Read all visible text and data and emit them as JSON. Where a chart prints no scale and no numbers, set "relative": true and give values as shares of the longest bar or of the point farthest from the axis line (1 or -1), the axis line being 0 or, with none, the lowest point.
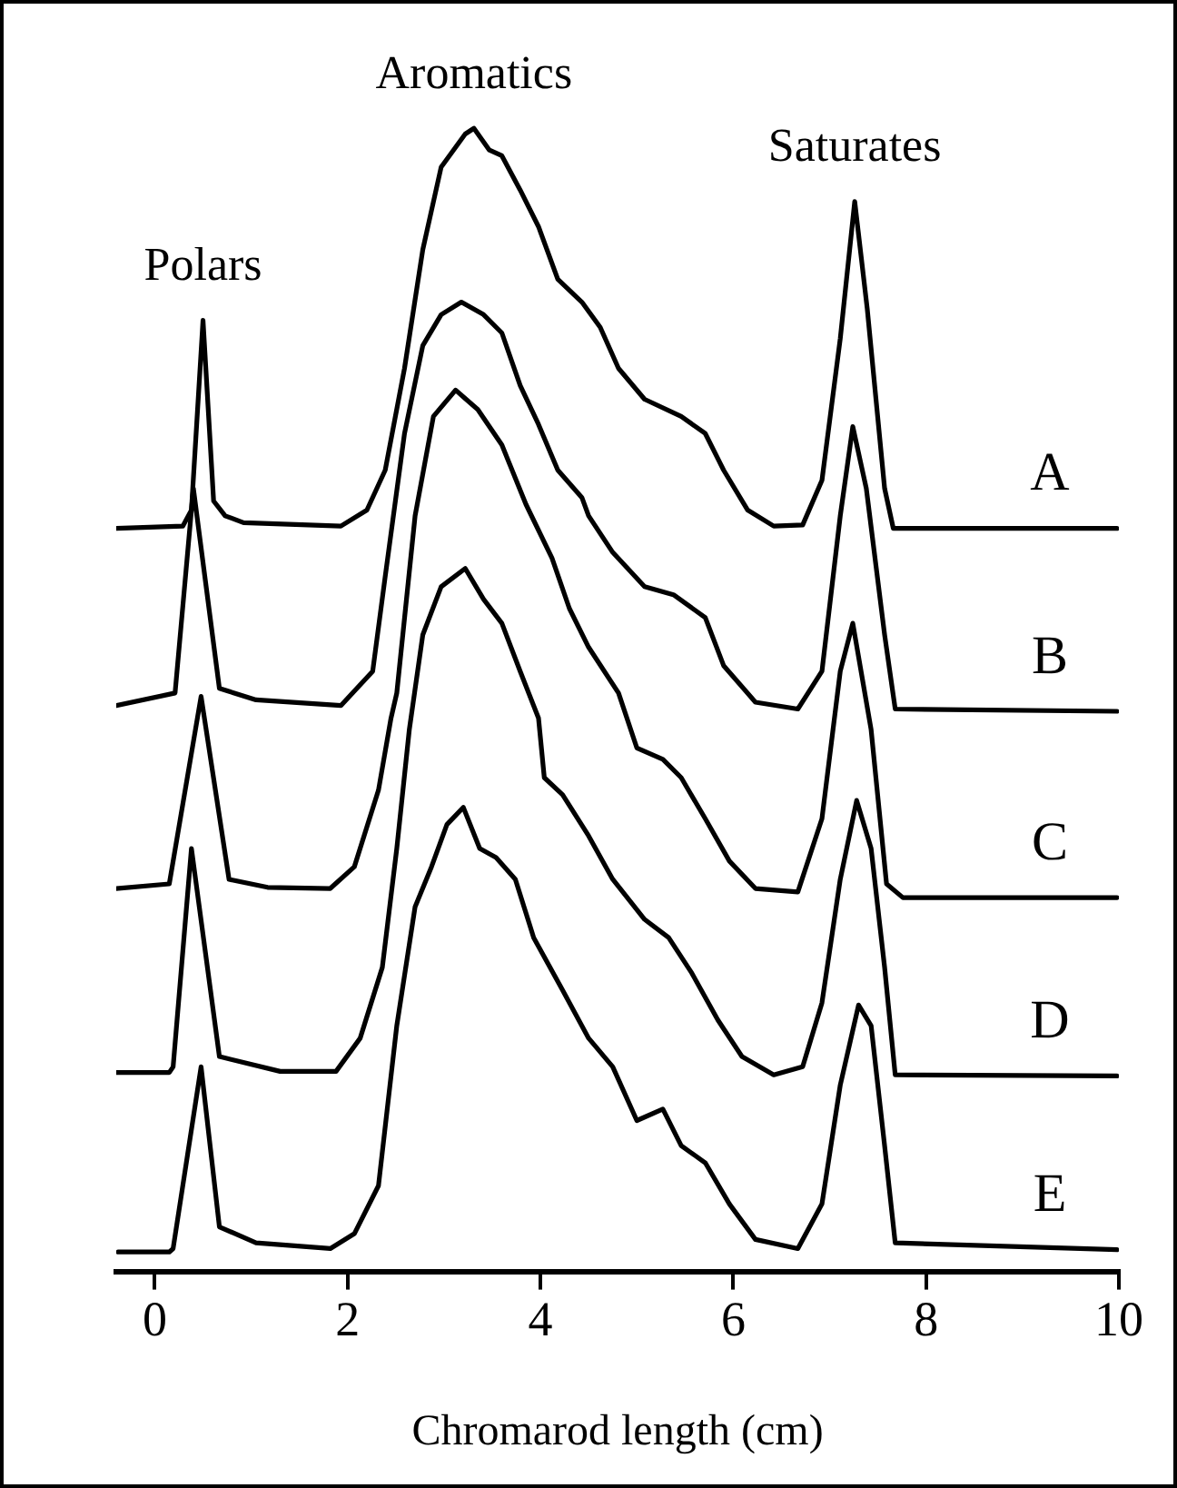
{
  "chart_data": {
    "type": "line",
    "relative": true,
    "xlabel": "Chromarod length (cm)",
    "xlim": [
      -0.4,
      10
    ],
    "xticks": [
      0,
      2,
      4,
      6,
      8,
      10
    ],
    "grid": false,
    "legend": false,
    "marker": "none",
    "line_style": "solid",
    "annotations": [
      "Polars",
      "Aromatics",
      "Saturates"
    ],
    "series": [
      {
        "name": "A",
        "color": "#000000",
        "x": [
          -0.4,
          0.29,
          0.38,
          0.5,
          0.61,
          0.73,
          0.92,
          1.93,
          2.2,
          2.39,
          2.59,
          2.78,
          2.97,
          3.22,
          3.31,
          3.47,
          3.6,
          3.79,
          3.98,
          4.18,
          4.43,
          4.62,
          4.81,
          5.08,
          5.46,
          5.71,
          5.9,
          6.15,
          6.42,
          6.72,
          6.92,
          7.11,
          7.26,
          7.39,
          7.57,
          7.66,
          9.98
        ],
        "values": [
          0.65,
          0.652,
          0.666,
          0.832,
          0.674,
          0.661,
          0.655,
          0.652,
          0.666,
          0.701,
          0.79,
          0.894,
          0.966,
          0.995,
          1.0,
          0.981,
          0.976,
          0.946,
          0.914,
          0.868,
          0.848,
          0.826,
          0.79,
          0.763,
          0.748,
          0.733,
          0.701,
          0.666,
          0.652,
          0.653,
          0.692,
          0.816,
          0.936,
          0.842,
          0.685,
          0.65,
          0.65
        ]
      },
      {
        "name": "B",
        "color": "#000000",
        "x": [
          -0.4,
          0.21,
          0.4,
          0.67,
          1.05,
          1.93,
          2.26,
          2.39,
          2.59,
          2.78,
          2.97,
          3.18,
          3.41,
          3.6,
          3.79,
          3.98,
          4.18,
          4.43,
          4.5,
          4.75,
          5.08,
          5.38,
          5.71,
          5.9,
          6.23,
          6.67,
          6.92,
          7.11,
          7.24,
          7.38,
          7.57,
          7.68,
          9.98
        ],
        "values": [
          0.495,
          0.506,
          0.685,
          0.51,
          0.5,
          0.495,
          0.525,
          0.608,
          0.733,
          0.81,
          0.837,
          0.848,
          0.837,
          0.821,
          0.775,
          0.741,
          0.701,
          0.677,
          0.661,
          0.629,
          0.599,
          0.592,
          0.572,
          0.53,
          0.498,
          0.492,
          0.525,
          0.661,
          0.739,
          0.685,
          0.557,
          0.492,
          0.49
        ]
      },
      {
        "name": "C",
        "color": "#000000",
        "x": [
          -0.4,
          0.15,
          0.48,
          0.77,
          1.17,
          1.82,
          2.07,
          2.32,
          2.45,
          2.51,
          2.7,
          2.89,
          3.12,
          3.35,
          3.6,
          3.85,
          4.12,
          4.3,
          4.5,
          4.81,
          5.0,
          5.27,
          5.46,
          5.71,
          5.96,
          6.23,
          6.67,
          6.92,
          7.11,
          7.24,
          7.43,
          7.59,
          7.76,
          9.98
        ],
        "values": [
          0.335,
          0.339,
          0.503,
          0.343,
          0.336,
          0.335,
          0.354,
          0.421,
          0.484,
          0.506,
          0.661,
          0.748,
          0.771,
          0.754,
          0.723,
          0.671,
          0.624,
          0.58,
          0.546,
          0.506,
          0.458,
          0.448,
          0.432,
          0.396,
          0.359,
          0.335,
          0.332,
          0.396,
          0.525,
          0.567,
          0.474,
          0.339,
          0.327,
          0.327
        ]
      },
      {
        "name": "D",
        "color": "#000000",
        "x": [
          -0.4,
          0.15,
          0.19,
          0.38,
          0.67,
          1.3,
          1.88,
          2.13,
          2.36,
          2.51,
          2.64,
          2.78,
          2.97,
          3.22,
          3.41,
          3.6,
          3.79,
          3.98,
          4.04,
          4.23,
          4.5,
          4.75,
          5.08,
          5.33,
          5.57,
          5.84,
          6.09,
          6.42,
          6.72,
          6.92,
          7.11,
          7.28,
          7.43,
          7.57,
          7.68,
          9.98
        ],
        "values": [
          0.174,
          0.174,
          0.179,
          0.37,
          0.188,
          0.175,
          0.175,
          0.204,
          0.266,
          0.37,
          0.474,
          0.557,
          0.599,
          0.615,
          0.588,
          0.567,
          0.525,
          0.484,
          0.432,
          0.417,
          0.381,
          0.343,
          0.308,
          0.292,
          0.261,
          0.22,
          0.188,
          0.172,
          0.179,
          0.235,
          0.343,
          0.412,
          0.37,
          0.266,
          0.172,
          0.171
        ]
      },
      {
        "name": "E",
        "color": "#000000",
        "x": [
          -0.38,
          0.15,
          0.19,
          0.48,
          0.67,
          1.05,
          1.82,
          2.07,
          2.32,
          2.51,
          2.7,
          2.87,
          3.03,
          3.2,
          3.37,
          3.54,
          3.74,
          3.93,
          4.23,
          4.5,
          4.75,
          5.0,
          5.27,
          5.46,
          5.71,
          5.96,
          6.23,
          6.67,
          6.92,
          7.11,
          7.3,
          7.43,
          7.57,
          7.68,
          9.98
        ],
        "values": [
          0.017,
          0.017,
          0.02,
          0.179,
          0.039,
          0.025,
          0.02,
          0.033,
          0.075,
          0.215,
          0.319,
          0.354,
          0.391,
          0.406,
          0.37,
          0.362,
          0.343,
          0.292,
          0.246,
          0.204,
          0.179,
          0.132,
          0.142,
          0.11,
          0.095,
          0.059,
          0.028,
          0.02,
          0.059,
          0.163,
          0.233,
          0.215,
          0.11,
          0.025,
          0.019
        ]
      }
    ]
  }
}
